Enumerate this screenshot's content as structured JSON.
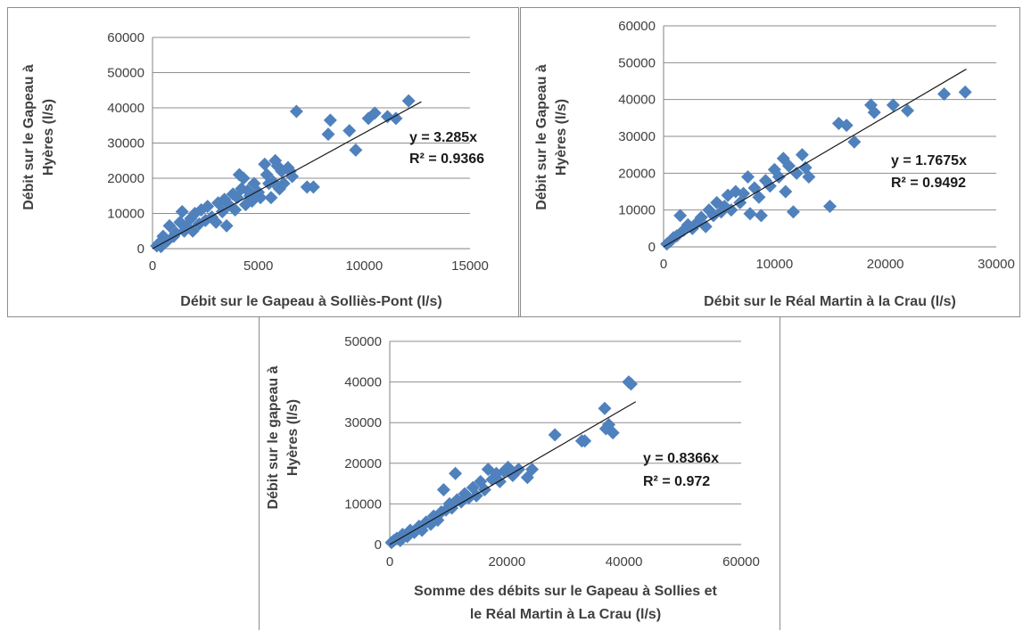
{
  "chart_data": [
    {
      "type": "scatter",
      "xlabel": "Débit sur le Gapeau à Solliès-Pont (l/s)",
      "ylabel_lines": [
        "Débit sur le Gapeau à",
        "Hyères (l/s)"
      ],
      "xlim": [
        0,
        15000
      ],
      "ylim": [
        0,
        60000
      ],
      "xticks": [
        "0",
        "5000",
        "10000",
        "15000"
      ],
      "yticks": [
        "0",
        "10000",
        "20000",
        "30000",
        "40000",
        "50000",
        "60000"
      ],
      "trendline": {
        "slope": 3.285,
        "x_end": 12700
      },
      "equation": "y = 3.285x",
      "r2": "R² = 0.9366",
      "grid": "horizontal",
      "marker_color": "#4f81bd",
      "points": [
        [
          200,
          800
        ],
        [
          300,
          1500
        ],
        [
          400,
          600
        ],
        [
          500,
          3500
        ],
        [
          700,
          2200
        ],
        [
          800,
          6500
        ],
        [
          1000,
          3500
        ],
        [
          1100,
          4500
        ],
        [
          1300,
          7500
        ],
        [
          1400,
          10500
        ],
        [
          1500,
          5000
        ],
        [
          1600,
          6500
        ],
        [
          1800,
          8500
        ],
        [
          1900,
          5000
        ],
        [
          2000,
          10000
        ],
        [
          2200,
          7000
        ],
        [
          2300,
          11000
        ],
        [
          2500,
          8000
        ],
        [
          2600,
          12000
        ],
        [
          2800,
          9000
        ],
        [
          3000,
          7500
        ],
        [
          3100,
          13000
        ],
        [
          3300,
          10500
        ],
        [
          3400,
          14000
        ],
        [
          3500,
          6500
        ],
        [
          3600,
          12500
        ],
        [
          3800,
          15500
        ],
        [
          3900,
          11000
        ],
        [
          4000,
          14500
        ],
        [
          4100,
          21000
        ],
        [
          4200,
          17000
        ],
        [
          4300,
          20000
        ],
        [
          4400,
          12500
        ],
        [
          4500,
          16500
        ],
        [
          4600,
          15000
        ],
        [
          4700,
          13500
        ],
        [
          4800,
          18500
        ],
        [
          5000,
          16000
        ],
        [
          5100,
          14500
        ],
        [
          5300,
          24000
        ],
        [
          5400,
          21000
        ],
        [
          5500,
          18500
        ],
        [
          5600,
          14500
        ],
        [
          5700,
          19000
        ],
        [
          5800,
          25000
        ],
        [
          5900,
          23500
        ],
        [
          6000,
          17000
        ],
        [
          6100,
          22000
        ],
        [
          6200,
          18500
        ],
        [
          6400,
          23000
        ],
        [
          6500,
          22000
        ],
        [
          6600,
          20500
        ],
        [
          6800,
          39000
        ],
        [
          7300,
          17500
        ],
        [
          7600,
          17500
        ],
        [
          8300,
          32500
        ],
        [
          8400,
          36500
        ],
        [
          9300,
          33500
        ],
        [
          9600,
          28000
        ],
        [
          10200,
          37000
        ],
        [
          10500,
          38500
        ],
        [
          11100,
          37500
        ],
        [
          11500,
          37000
        ],
        [
          12100,
          42000
        ]
      ]
    },
    {
      "type": "scatter",
      "xlabel": "Débit sur le Réal Martin à la Crau (l/s)",
      "ylabel_lines": [
        "Débit sur le Gapeau à",
        "Hyères (l/s)"
      ],
      "xlim": [
        0,
        30000
      ],
      "ylim": [
        0,
        60000
      ],
      "xticks": [
        "0",
        "10000",
        "20000",
        "30000"
      ],
      "yticks": [
        "0",
        "10000",
        "20000",
        "30000",
        "40000",
        "50000",
        "60000"
      ],
      "trendline": {
        "slope": 1.7675,
        "x_end": 27300
      },
      "equation": "y = 1.7675x",
      "r2": "R² = 0.9492",
      "grid": "horizontal",
      "marker_color": "#4f81bd",
      "points": [
        [
          300,
          800
        ],
        [
          600,
          1500
        ],
        [
          900,
          2500
        ],
        [
          1200,
          3000
        ],
        [
          1500,
          8500
        ],
        [
          1800,
          4500
        ],
        [
          2200,
          6000
        ],
        [
          2600,
          5000
        ],
        [
          3000,
          6500
        ],
        [
          3400,
          8000
        ],
        [
          3800,
          5500
        ],
        [
          4100,
          10000
        ],
        [
          4500,
          8500
        ],
        [
          4800,
          12000
        ],
        [
          5200,
          9500
        ],
        [
          5500,
          11000
        ],
        [
          5800,
          14000
        ],
        [
          6100,
          10000
        ],
        [
          6500,
          15000
        ],
        [
          6900,
          12000
        ],
        [
          7200,
          14500
        ],
        [
          7600,
          19000
        ],
        [
          7800,
          9000
        ],
        [
          8200,
          16000
        ],
        [
          8600,
          13500
        ],
        [
          8800,
          8500
        ],
        [
          9200,
          18000
        ],
        [
          9600,
          16500
        ],
        [
          10000,
          21000
        ],
        [
          10400,
          19000
        ],
        [
          10800,
          24000
        ],
        [
          11000,
          15000
        ],
        [
          11300,
          22000
        ],
        [
          11700,
          9500
        ],
        [
          12000,
          20000
        ],
        [
          12500,
          25000
        ],
        [
          12800,
          21500
        ],
        [
          13100,
          19000
        ],
        [
          15000,
          11000
        ],
        [
          15800,
          33500
        ],
        [
          16500,
          33000
        ],
        [
          17200,
          28500
        ],
        [
          18700,
          38500
        ],
        [
          19000,
          36500
        ],
        [
          20700,
          38500
        ],
        [
          22000,
          37000
        ],
        [
          25300,
          41500
        ],
        [
          27200,
          42000
        ]
      ]
    },
    {
      "type": "scatter",
      "xlabel_lines": [
        "Somme des débits sur le Gapeau à Sollies et",
        "le Réal Martin à La Crau (l/s)"
      ],
      "ylabel_lines": [
        "Débit sur le gapeau à",
        "Hyères (l/s)"
      ],
      "xlim": [
        0,
        60000
      ],
      "ylim": [
        0,
        50000
      ],
      "xticks": [
        "0",
        "20000",
        "40000",
        "60000"
      ],
      "yticks": [
        "0",
        "10000",
        "20000",
        "30000",
        "40000",
        "50000"
      ],
      "trendline": {
        "slope": 0.8366,
        "x_end": 42000
      },
      "equation": "y = 0.8366x",
      "r2": "R² = 0.972",
      "grid": "horizontal",
      "marker_color": "#4f81bd",
      "points": [
        [
          300,
          500
        ],
        [
          700,
          1000
        ],
        [
          1200,
          1500
        ],
        [
          1800,
          1000
        ],
        [
          2200,
          2500
        ],
        [
          3000,
          2000
        ],
        [
          3500,
          3500
        ],
        [
          4200,
          3000
        ],
        [
          5000,
          4500
        ],
        [
          5500,
          3500
        ],
        [
          6200,
          5500
        ],
        [
          7000,
          5000
        ],
        [
          7500,
          7000
        ],
        [
          8200,
          6000
        ],
        [
          8800,
          8000
        ],
        [
          9200,
          13500
        ],
        [
          9600,
          8500
        ],
        [
          10200,
          10000
        ],
        [
          10600,
          9000
        ],
        [
          11200,
          17500
        ],
        [
          11500,
          11000
        ],
        [
          12200,
          10500
        ],
        [
          12800,
          12500
        ],
        [
          13500,
          11500
        ],
        [
          14200,
          14000
        ],
        [
          14800,
          12000
        ],
        [
          15500,
          15500
        ],
        [
          16200,
          13500
        ],
        [
          16800,
          18500
        ],
        [
          17500,
          16000
        ],
        [
          18200,
          17500
        ],
        [
          18800,
          15500
        ],
        [
          19500,
          18000
        ],
        [
          20200,
          19000
        ],
        [
          21000,
          17000
        ],
        [
          22000,
          18500
        ],
        [
          23500,
          16500
        ],
        [
          24300,
          18500
        ],
        [
          28200,
          27000
        ],
        [
          32800,
          25500
        ],
        [
          33300,
          25500
        ],
        [
          36700,
          33500
        ],
        [
          36900,
          28500
        ],
        [
          37400,
          29500
        ],
        [
          38100,
          27500
        ],
        [
          40800,
          40000
        ],
        [
          41200,
          39500
        ]
      ]
    }
  ]
}
